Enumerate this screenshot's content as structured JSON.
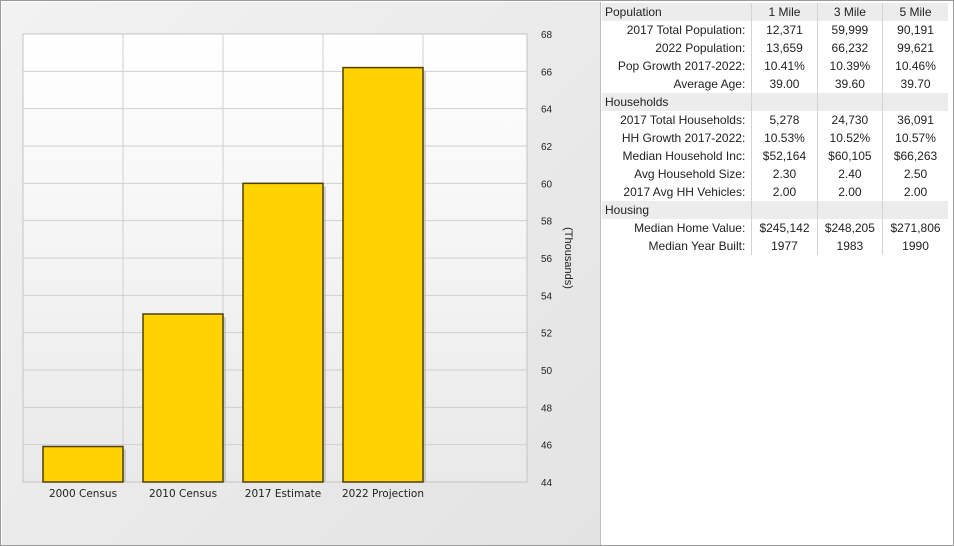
{
  "chart_data": {
    "type": "bar",
    "categories": [
      "2000 Census",
      "2010 Census",
      "2017 Estimate",
      "2022 Projection"
    ],
    "values": [
      45.9,
      53.0,
      60.0,
      66.2
    ],
    "ylabel": "(Thousands)",
    "ylim": [
      44,
      68
    ],
    "yticks": [
      44,
      46,
      48,
      50,
      52,
      54,
      56,
      58,
      60,
      62,
      64,
      66,
      68
    ],
    "grid": true,
    "y_axis_side": "right",
    "colors": {
      "bar_fill": "#ffd200",
      "bar_edge": "#4d4000",
      "grid": "#cfcfcf",
      "plot_bg": "#ffffff"
    }
  },
  "table": {
    "headers": [
      "Population",
      "1 Mile",
      "3 Mile",
      "5 Mile"
    ],
    "rows": [
      {
        "label": "2017 Total Population:",
        "values": [
          "12,371",
          "59,999",
          "90,191"
        ]
      },
      {
        "label": "2022 Population:",
        "values": [
          "13,659",
          "66,232",
          "99,621"
        ]
      },
      {
        "label": "Pop Growth 2017-2022:",
        "values": [
          "10.41%",
          "10.39%",
          "10.46%"
        ]
      },
      {
        "label": "Average Age:",
        "values": [
          "39.00",
          "39.60",
          "39.70"
        ]
      },
      {
        "section": "Households"
      },
      {
        "label": "2017 Total Households:",
        "values": [
          "5,278",
          "24,730",
          "36,091"
        ]
      },
      {
        "label": "HH Growth 2017-2022:",
        "values": [
          "10.53%",
          "10.52%",
          "10.57%"
        ]
      },
      {
        "label": "Median Household Inc:",
        "values": [
          "$52,164",
          "$60,105",
          "$66,263"
        ]
      },
      {
        "label": "Avg Household Size:",
        "values": [
          "2.30",
          "2.40",
          "2.50"
        ]
      },
      {
        "label": "2017 Avg HH Vehicles:",
        "values": [
          "2.00",
          "2.00",
          "2.00"
        ]
      },
      {
        "section": "Housing"
      },
      {
        "label": "Median Home Value:",
        "values": [
          "$245,142",
          "$248,205",
          "$271,806"
        ]
      },
      {
        "label": "Median Year Built:",
        "values": [
          "1977",
          "1983",
          "1990"
        ]
      }
    ]
  }
}
